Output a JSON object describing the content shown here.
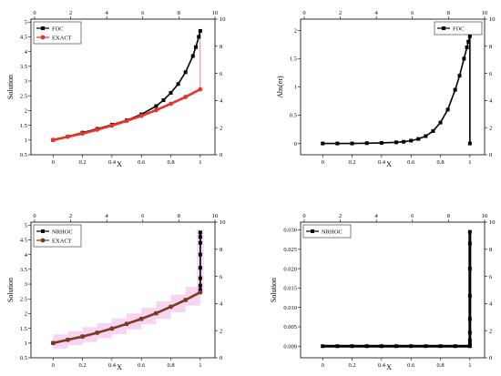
{
  "chart_data": [
    {
      "type": "scatter",
      "xlabel": "X",
      "ylabel": "Solution",
      "xlim": [
        -0.15,
        1.1
      ],
      "ylim": [
        0.5,
        5.1
      ],
      "xticks": [
        0.0,
        0.2,
        0.4,
        0.6,
        0.8,
        1.0
      ],
      "yticks": [
        0.5,
        1.0,
        1.5,
        2.0,
        2.5,
        3.0,
        3.5,
        4.0,
        4.5,
        5.0
      ],
      "top_axis": {
        "lim": [
          -0.2,
          10
        ],
        "ticks": [
          0,
          2,
          4,
          6,
          8,
          10
        ]
      },
      "right_axis": {
        "lim": [
          0,
          10
        ],
        "ticks": [
          0,
          2,
          4,
          6,
          8,
          10
        ]
      },
      "legend_position": "top-left",
      "series": [
        {
          "name": "FOC",
          "color": "#000000",
          "marker": "square",
          "x": [
            0.0,
            0.1,
            0.2,
            0.3,
            0.4,
            0.5,
            0.6,
            0.7,
            0.75,
            0.8,
            0.85,
            0.9,
            0.95,
            0.97,
            0.99,
            1.0
          ],
          "y": [
            1.0,
            1.12,
            1.25,
            1.38,
            1.52,
            1.67,
            1.87,
            2.15,
            2.35,
            2.6,
            2.9,
            3.3,
            3.85,
            4.15,
            4.5,
            4.7
          ]
        },
        {
          "name": "EXACT",
          "color": "#e8322b",
          "marker": "circle",
          "x": [
            0.0,
            0.1,
            0.2,
            0.3,
            0.4,
            0.5,
            0.6,
            0.7,
            0.8,
            0.9,
            1.0
          ],
          "y": [
            1.0,
            1.11,
            1.22,
            1.35,
            1.49,
            1.65,
            1.82,
            2.01,
            2.23,
            2.46,
            2.72
          ]
        }
      ],
      "jump_x": 1.0,
      "jump_from": 2.72,
      "jump_to": 4.7
    },
    {
      "type": "scatter",
      "xlabel": "X",
      "ylabel": "Abs(er)",
      "xlim": [
        -0.15,
        1.1
      ],
      "ylim": [
        -0.2,
        2.2
      ],
      "xticks": [
        0.0,
        0.2,
        0.4,
        0.6,
        0.8,
        1.0
      ],
      "yticks": [
        0.0,
        0.5,
        1.0,
        1.5,
        2.0
      ],
      "top_axis": {
        "lim": [
          -0.2,
          10
        ],
        "ticks": [
          0,
          2,
          4,
          6,
          8,
          10
        ]
      },
      "right_axis": {
        "lim": [
          0,
          10
        ],
        "ticks": [
          0,
          2,
          4,
          6,
          8,
          10
        ]
      },
      "legend_position": "top-right",
      "series": [
        {
          "name": "FOC",
          "color": "#000000",
          "marker": "square",
          "x": [
            0.0,
            0.1,
            0.2,
            0.3,
            0.4,
            0.5,
            0.55,
            0.6,
            0.65,
            0.7,
            0.75,
            0.8,
            0.85,
            0.9,
            0.93,
            0.96,
            0.98,
            0.99,
            1.0,
            1.0
          ],
          "y": [
            0.0,
            0.0,
            0.0,
            0.005,
            0.01,
            0.02,
            0.03,
            0.05,
            0.08,
            0.13,
            0.22,
            0.37,
            0.6,
            0.95,
            1.2,
            1.5,
            1.7,
            1.8,
            1.9,
            0.0
          ]
        }
      ]
    },
    {
      "type": "scatter",
      "xlabel": "X",
      "ylabel": "Solution",
      "xlim": [
        -0.15,
        1.1
      ],
      "ylim": [
        0.5,
        5.1
      ],
      "xticks": [
        0.0,
        0.2,
        0.4,
        0.6,
        0.8,
        1.0
      ],
      "yticks": [
        0.5,
        1.0,
        1.5,
        2.0,
        2.5,
        3.0,
        3.5,
        4.0,
        4.5,
        5.0
      ],
      "top_axis": {
        "lim": [
          -0.2,
          10
        ],
        "ticks": [
          0,
          2,
          4,
          6,
          8,
          10
        ]
      },
      "right_axis": {
        "lim": [
          0,
          10
        ],
        "ticks": [
          0,
          2,
          4,
          6,
          8,
          10
        ]
      },
      "legend_position": "top-left",
      "series": [
        {
          "name": "NRHOC",
          "color": "#000000",
          "marker": "square",
          "x": [
            0.0,
            0.1,
            0.2,
            0.3,
            0.4,
            0.5,
            0.6,
            0.7,
            0.8,
            0.9,
            1.0,
            1.0,
            1.0,
            1.0,
            1.0,
            1.0,
            1.0,
            1.0,
            1.0
          ],
          "y": [
            1.0,
            1.11,
            1.22,
            1.35,
            1.49,
            1.65,
            1.82,
            2.01,
            2.23,
            2.46,
            2.72,
            2.8,
            2.95,
            3.2,
            3.55,
            4.0,
            4.4,
            4.6,
            4.75
          ]
        },
        {
          "name": "EXACT",
          "color": "#7a3b1f",
          "marker": "circle",
          "x": [
            0.0,
            0.1,
            0.2,
            0.3,
            0.4,
            0.5,
            0.6,
            0.7,
            0.8,
            0.9,
            1.0
          ],
          "y": [
            1.0,
            1.11,
            1.22,
            1.35,
            1.49,
            1.65,
            1.82,
            2.01,
            2.23,
            2.46,
            2.72
          ]
        }
      ]
    },
    {
      "type": "scatter",
      "xlabel": "X",
      "ylabel": "Solution",
      "xlim": [
        -0.15,
        1.1
      ],
      "ylim": [
        -0.003,
        0.032
      ],
      "xticks": [
        0.0,
        0.2,
        0.4,
        0.6,
        0.8,
        1.0
      ],
      "yticks": [
        0.0,
        0.005,
        0.01,
        0.015,
        0.02,
        0.025,
        0.03
      ],
      "ytick_labels": [
        "0.000",
        "0.005",
        "0.010",
        "0.015",
        "0.020",
        "0.025",
        "0.030"
      ],
      "top_axis": {
        "lim": [
          -0.2,
          10
        ],
        "ticks": [
          0,
          2,
          4,
          6,
          8,
          10
        ]
      },
      "right_axis": {
        "lim": [
          0,
          10
        ],
        "ticks": [
          0,
          2,
          4,
          6,
          8,
          10
        ]
      },
      "legend_position": "top-left",
      "series": [
        {
          "name": "NRHOC",
          "color": "#000000",
          "marker": "square",
          "x": [
            0.0,
            0.1,
            0.2,
            0.3,
            0.4,
            0.5,
            0.6,
            0.7,
            0.8,
            0.9,
            1.0,
            1.0,
            1.0,
            1.0,
            1.0,
            1.0,
            1.0,
            1.0,
            1.0
          ],
          "y": [
            0.0,
            0.0,
            0.0,
            0.0,
            0.0,
            0.0,
            0.0,
            0.0,
            0.0,
            0.0,
            0.0,
            0.0005,
            0.0015,
            0.0035,
            0.007,
            0.013,
            0.02,
            0.0265,
            0.0295
          ]
        }
      ]
    }
  ]
}
